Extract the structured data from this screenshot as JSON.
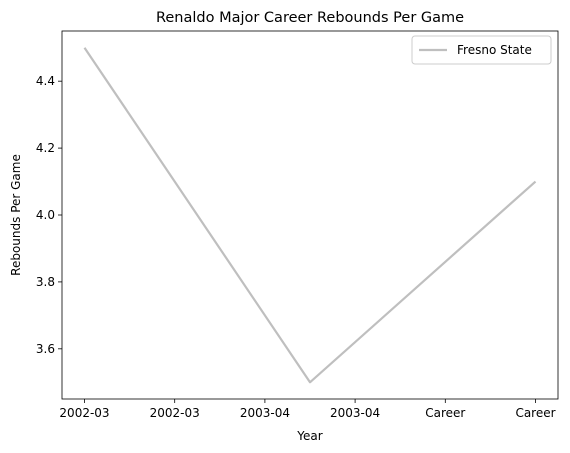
{
  "chart_data": {
    "type": "line",
    "title": "Renaldo Major Career Rebounds Per Game",
    "xlabel": "Year",
    "ylabel": "Rebounds Per Game",
    "x_ticks": [
      "2002-03",
      "2002-03",
      "2003-04",
      "2003-04",
      "Career",
      "Career"
    ],
    "x_range": [
      0,
      5
    ],
    "ylim": [
      3.45,
      4.55
    ],
    "y_ticks": [
      3.6,
      3.8,
      4.0,
      4.2,
      4.4
    ],
    "y_tick_labels": [
      "3.6",
      "3.8",
      "4.0",
      "4.2",
      "4.4"
    ],
    "grid": false,
    "legend_position": "top-right",
    "series": [
      {
        "name": "Fresno State",
        "color": "#bfbfbf",
        "x": [
          0,
          2.5,
          5
        ],
        "values": [
          4.5,
          3.5,
          4.1
        ]
      }
    ]
  }
}
